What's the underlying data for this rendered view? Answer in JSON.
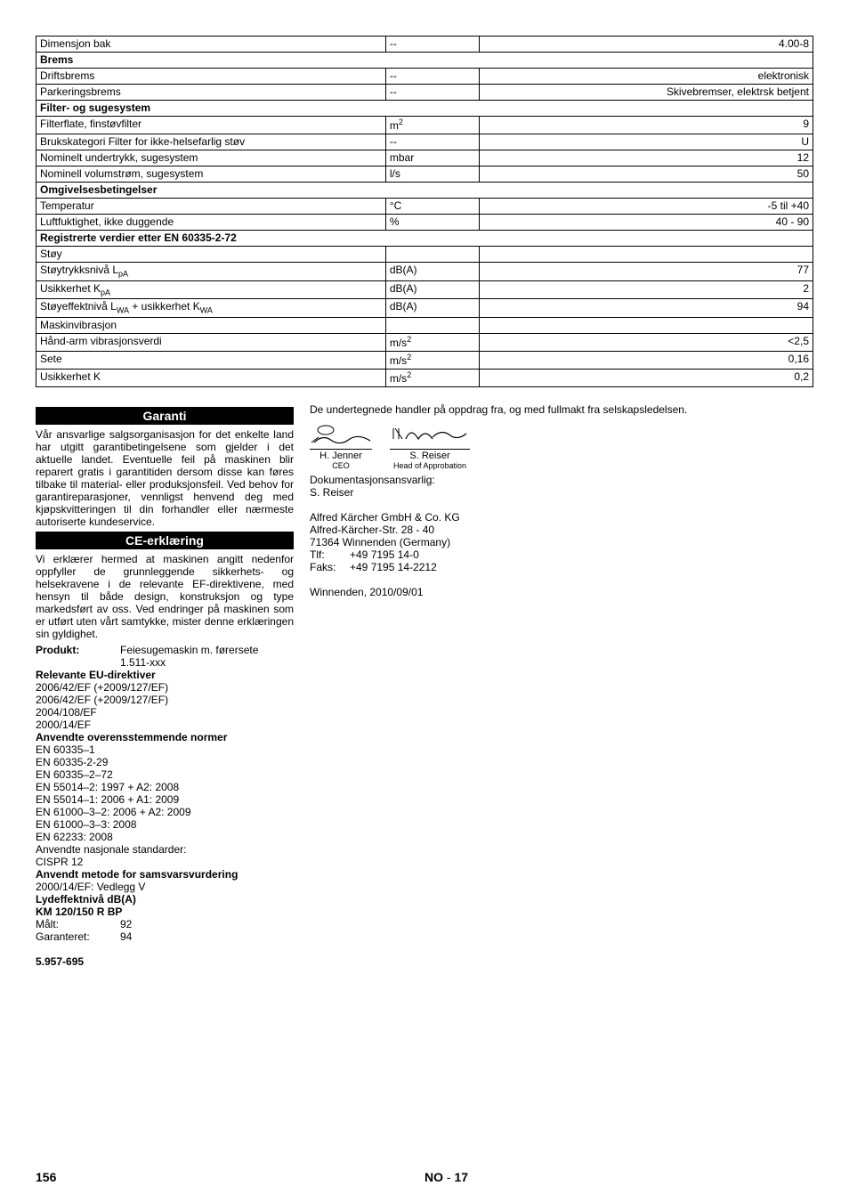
{
  "table": {
    "rows": [
      {
        "type": "row",
        "c1": "Dimensjon bak",
        "c2": "--",
        "c3": "4.00-8"
      },
      {
        "type": "section",
        "c1": "Brems"
      },
      {
        "type": "row",
        "c1": "Driftsbrems",
        "c2": "--",
        "c3": "elektronisk"
      },
      {
        "type": "row",
        "c1": "Parkeringsbrems",
        "c2": "--",
        "c3": "Skivebremser, elektrsk betjent"
      },
      {
        "type": "section",
        "c1": "Filter- og sugesystem"
      },
      {
        "type": "row",
        "c1": "Filterflate, finstøvfilter",
        "c2": "m²",
        "c3": "9",
        "c2_html": "m<span class='sup'>2</span>"
      },
      {
        "type": "row",
        "c1": "Brukskategori  Filter for ikke-helsefarlig støv",
        "c2": "--",
        "c3": "U"
      },
      {
        "type": "row",
        "c1": "Nominelt undertrykk, sugesystem",
        "c2": "mbar",
        "c3": "12"
      },
      {
        "type": "row",
        "c1": "Nominell volumstrøm, sugesystem",
        "c2": "l/s",
        "c3": "50"
      },
      {
        "type": "section",
        "c1": "Omgivelsesbetingelser"
      },
      {
        "type": "row",
        "c1": "Temperatur",
        "c2": "°C",
        "c3": "-5 til +40"
      },
      {
        "type": "row",
        "c1": "Luftfuktighet, ikke duggende",
        "c2": "%",
        "c3": "40 - 90"
      },
      {
        "type": "section",
        "c1": "Registrerte verdier etter EN 60335-2-72"
      },
      {
        "type": "row",
        "c1": "Støy",
        "c2": "",
        "c3": ""
      },
      {
        "type": "row",
        "c1": "Støytrykksnivå L<span class='sub'>pA</span>",
        "c2": "dB(A)",
        "c3": "77",
        "c1_raw": "Støytrykksnivå LpA"
      },
      {
        "type": "row",
        "c1": "Usikkerhet K<span class='sub'>pA</span>",
        "c2": "dB(A)",
        "c3": "2",
        "c1_raw": "Usikkerhet KpA"
      },
      {
        "type": "row",
        "c1": "Støyeffektnivå L<span class='sub'>WA</span> + usikkerhet K<span class='sub'>WA</span>",
        "c2": "dB(A)",
        "c3": "94",
        "c1_raw": "Støyeffektnivå LWA + usikkerhet KWA"
      },
      {
        "type": "row",
        "c1": "Maskinvibrasjon",
        "c2": "",
        "c3": ""
      },
      {
        "type": "row",
        "c1": "Hånd-arm vibrasjonsverdi",
        "c2": "m/s²",
        "c3": "<2,5",
        "c2_html": "m/s<span class='sup'>2</span>"
      },
      {
        "type": "row",
        "c1": "Sete",
        "c2": "m/s²",
        "c3": "0,16",
        "c2_html": "m/s<span class='sup'>2</span>"
      },
      {
        "type": "row",
        "c1": "Usikkerhet K",
        "c2": "m/s²",
        "c3": "0,2",
        "c2_html": "m/s<span class='sup'>2</span>"
      }
    ]
  },
  "garanti": {
    "title": "Garanti",
    "text": "Vår ansvarlige salgsorganisasjon for det enkelte land har utgitt garantibetingelsene som gjelder i det aktuelle landet. Eventuelle feil på maskinen blir reparert gratis i garantitiden dersom disse kan føres tilbake til material- eller produksjonsfeil. Ved behov for garantireparasjoner, vennligst henvend deg med kjøpskvitteringen til din forhandler eller nærmeste autoriserte kundeservice."
  },
  "ce": {
    "title": "CE-erklæring",
    "intro": "Vi erklærer hermed at maskinen angitt nedenfor oppfyller de grunnleggende sikkerhets- og helsekravene i de relevante EF-direktivene, med hensyn til både design, konstruksjon og type markedsført av oss. Ved endringer på maskinen som er utført uten vårt samtykke, mister denne erklæringen sin gyldighet.",
    "product_label": "Produkt:",
    "product_value1": "Feiesugemaskin m. førersete",
    "product_value2": "1.511-xxx",
    "directives_label": "Relevante EU-direktiver",
    "directives": [
      "2006/42/EF (+2009/127/EF)",
      "2006/42/EF (+2009/127/EF)",
      "2004/108/EF",
      "2000/14/EF"
    ],
    "norms_label": "Anvendte overensstemmende normer",
    "norms": [
      "EN 60335–1",
      "EN 60335-2-29",
      "EN 60335–2–72",
      "EN 55014–2: 1997 + A2: 2008",
      "EN 55014–1: 2006 + A1: 2009",
      "EN 61000–3–2: 2006 + A2: 2009",
      "EN 61000–3–3: 2008",
      "EN 62233: 2008"
    ],
    "natstd_label": "Anvendte nasjonale standarder:",
    "natstd": [
      "CISPR 12"
    ],
    "method_label": "Anvendt metode for samsvarsvurdering",
    "method": "2000/14/EF: Vedlegg V",
    "sound_label": "Lydeffektnivå dB(A)",
    "model": "KM 120/150 R BP",
    "measured_label": "Målt:",
    "measured": "92",
    "guaranteed_label": "Garanteret:",
    "guaranteed": "94",
    "docno": "5.957-695"
  },
  "right": {
    "auth": "De undertegnede handler på oppdrag fra, og med fullmakt fra selskapsledelsen.",
    "sig1_name": "H. Jenner",
    "sig1_role": "CEO",
    "sig2_name": "S. Reiser",
    "sig2_role": "Head of Approbation",
    "docresp_label": "Dokumentasjonsansvarlig:",
    "docresp": "S. Reiser",
    "company": "Alfred Kärcher GmbH & Co. KG",
    "addr1": "Alfred-Kärcher-Str. 28 - 40",
    "addr2": "71364 Winnenden (Germany)",
    "tel_label": "Tlf:",
    "tel": "+49 7195 14-0",
    "fax_label": "Faks:",
    "fax": "+49 7195 14-2212",
    "place_date": "Winnenden, 2010/09/01"
  },
  "footer": {
    "page": "156",
    "lang": "NO",
    "sep": " - ",
    "sub": "17"
  }
}
